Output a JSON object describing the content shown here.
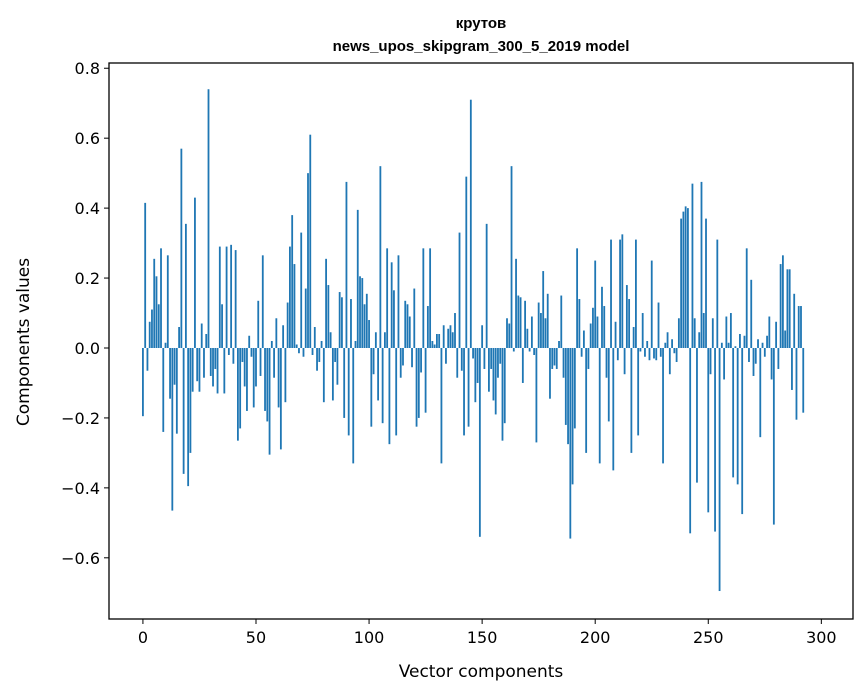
{
  "chart_data": {
    "type": "bar",
    "title": "крутов",
    "subtitle": "news_upos_skipgram_300_5_2019 model",
    "xlabel": "Vector components",
    "ylabel": "Components values",
    "xlim": [
      -15,
      314
    ],
    "ylim": [
      -0.775,
      0.815
    ],
    "xticks": [
      0,
      50,
      100,
      150,
      200,
      250,
      300
    ],
    "yticks": [
      -0.6,
      -0.4,
      -0.2,
      0.0,
      0.2,
      0.4,
      0.6,
      0.8
    ],
    "ytick_labels": [
      "−0.6",
      "−0.4",
      "−0.2",
      "0.0",
      "0.2",
      "0.4",
      "0.6",
      "0.8"
    ],
    "bar_color": "#1f77b4",
    "grid": false,
    "values": [
      -0.195,
      0.415,
      -0.065,
      0.075,
      0.11,
      0.255,
      0.205,
      0.125,
      0.285,
      -0.24,
      0.015,
      0.265,
      -0.145,
      -0.465,
      -0.105,
      -0.245,
      0.06,
      0.57,
      -0.36,
      0.355,
      -0.395,
      -0.3,
      -0.125,
      0.43,
      -0.095,
      -0.125,
      0.07,
      -0.085,
      0.04,
      0.74,
      -0.08,
      -0.11,
      -0.06,
      -0.13,
      0.29,
      0.125,
      -0.13,
      0.29,
      -0.02,
      0.295,
      -0.045,
      0.28,
      -0.265,
      -0.23,
      -0.04,
      -0.11,
      -0.18,
      0.035,
      -0.025,
      -0.17,
      -0.11,
      0.135,
      -0.08,
      0.265,
      -0.18,
      -0.21,
      -0.305,
      0.02,
      -0.085,
      0.085,
      -0.17,
      -0.29,
      0.065,
      -0.155,
      0.13,
      0.29,
      0.38,
      0.24,
      0.01,
      -0.015,
      0.33,
      -0.025,
      0.17,
      0.5,
      0.61,
      -0.02,
      0.06,
      -0.065,
      -0.04,
      0.02,
      -0.155,
      0.255,
      0.18,
      0.045,
      -0.15,
      -0.04,
      -0.105,
      0.16,
      0.145,
      -0.2,
      0.475,
      -0.25,
      0.14,
      -0.33,
      0.02,
      0.395,
      0.205,
      0.2,
      0.125,
      0.155,
      0.08,
      -0.225,
      -0.075,
      0.045,
      -0.15,
      0.52,
      -0.215,
      0.045,
      0.285,
      -0.275,
      0.245,
      0.165,
      -0.25,
      0.265,
      -0.085,
      -0.05,
      0.135,
      0.125,
      0.09,
      -0.055,
      0.17,
      -0.225,
      -0.2,
      -0.07,
      0.285,
      -0.185,
      0.12,
      0.285,
      0.02,
      0.01,
      0.04,
      0.04,
      -0.33,
      0.065,
      -0.045,
      0.055,
      0.065,
      0.045,
      0.1,
      -0.085,
      0.33,
      -0.065,
      -0.25,
      0.49,
      -0.225,
      0.71,
      -0.03,
      -0.155,
      -0.1,
      -0.54,
      0.065,
      -0.06,
      0.355,
      -0.125,
      -0.06,
      -0.15,
      -0.19,
      -0.085,
      -0.045,
      -0.265,
      -0.215,
      0.085,
      0.07,
      0.52,
      -0.01,
      0.255,
      0.15,
      0.145,
      -0.1,
      0.135,
      0.055,
      -0.01,
      0.09,
      -0.02,
      -0.27,
      0.13,
      0.1,
      0.22,
      0.085,
      0.155,
      -0.145,
      -0.06,
      -0.05,
      -0.06,
      0.02,
      0.15,
      -0.085,
      -0.22,
      -0.275,
      -0.545,
      -0.39,
      -0.23,
      0.285,
      0.14,
      -0.025,
      0.05,
      -0.3,
      -0.06,
      0.07,
      0.115,
      0.25,
      0.09,
      -0.33,
      0.175,
      0.12,
      -0.085,
      -0.21,
      0.31,
      -0.35,
      0.075,
      -0.035,
      0.31,
      0.325,
      -0.075,
      0.18,
      0.14,
      -0.3,
      0.06,
      0.31,
      -0.25,
      -0.01,
      0.1,
      -0.025,
      0.02,
      -0.035,
      0.25,
      -0.03,
      -0.035,
      0.13,
      -0.025,
      -0.33,
      0.015,
      0.045,
      -0.075,
      0.025,
      -0.015,
      -0.04,
      0.085,
      0.37,
      0.39,
      0.405,
      0.4,
      -0.53,
      0.47,
      0.085,
      -0.385,
      0.045,
      0.475,
      0.1,
      0.37,
      -0.47,
      -0.075,
      0.085,
      -0.525,
      0.31,
      -0.695,
      0.015,
      -0.09,
      0.09,
      0.015,
      0.1,
      -0.37,
      0.005,
      -0.39,
      0.04,
      -0.475,
      0.035,
      0.285,
      -0.04,
      0.195,
      -0.08,
      -0.045,
      0.025,
      -0.255,
      0.015,
      -0.025,
      0.035,
      0.09,
      -0.09,
      -0.505,
      0.075,
      -0.06,
      0.24,
      0.265,
      0.05,
      0.225,
      0.225,
      -0.12,
      0.155,
      -0.205,
      0.12,
      0.12,
      -0.185
    ]
  }
}
